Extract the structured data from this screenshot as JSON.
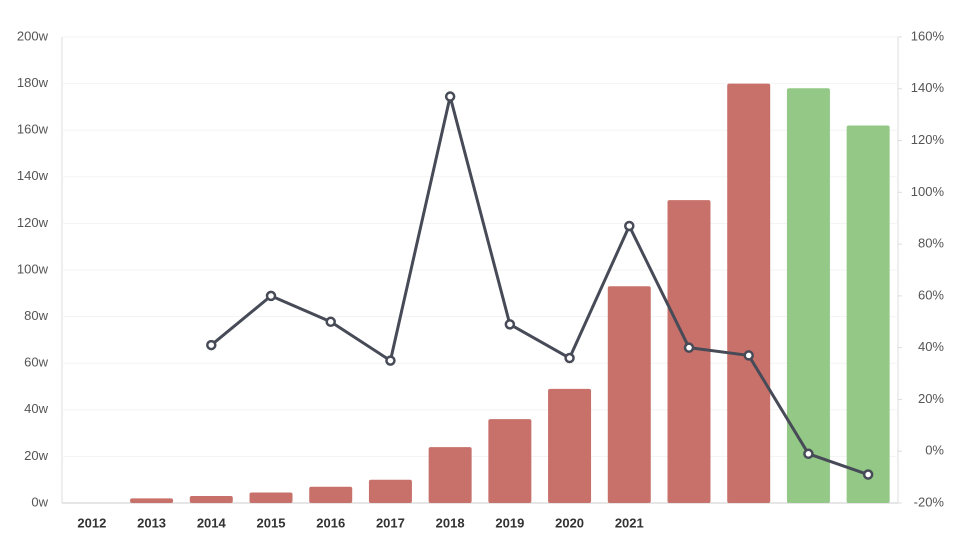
{
  "chart_data": {
    "type": "bar-line",
    "categories": [
      "2012",
      "2013",
      "2014",
      "2015",
      "2016",
      "2017",
      "2018",
      "2019",
      "2020",
      "2021",
      null,
      null,
      null,
      null
    ],
    "series": [
      {
        "type": "bar",
        "values": [
          0,
          2,
          3,
          4.5,
          7,
          10,
          24,
          36,
          49,
          93,
          130,
          180,
          178,
          162
        ],
        "colors": [
          "#c8706a",
          "#c8706a",
          "#c8706a",
          "#c8706a",
          "#c8706a",
          "#c8706a",
          "#c8706a",
          "#c8706a",
          "#c8706a",
          "#c8706a",
          "#c8706a",
          "#c8706a",
          "#93c886",
          "#93c886"
        ]
      },
      {
        "type": "line",
        "axis": "y2",
        "color": "#474b57",
        "values": [
          null,
          null,
          41,
          60,
          50,
          35,
          137,
          49,
          36,
          87,
          40,
          37,
          -1,
          -9
        ]
      }
    ],
    "ylim": [
      0,
      200
    ],
    "yticks": [
      {
        "value": 0,
        "label": "0w"
      },
      {
        "value": 20,
        "label": "20w"
      },
      {
        "value": 40,
        "label": "40w"
      },
      {
        "value": 60,
        "label": "60w"
      },
      {
        "value": 80,
        "label": "80w"
      },
      {
        "value": 100,
        "label": "100w"
      },
      {
        "value": 120,
        "label": "120w"
      },
      {
        "value": 140,
        "label": "140w"
      },
      {
        "value": 160,
        "label": "160w"
      },
      {
        "value": 180,
        "label": "180w"
      },
      {
        "value": 200,
        "label": "200w"
      }
    ],
    "y2lim": [
      -20,
      160
    ],
    "y2ticks": [
      {
        "value": -20,
        "label": "-20%"
      },
      {
        "value": 0,
        "label": "0%"
      },
      {
        "value": 20,
        "label": "20%"
      },
      {
        "value": 40,
        "label": "40%"
      },
      {
        "value": 60,
        "label": "60%"
      },
      {
        "value": 80,
        "label": "80%"
      },
      {
        "value": 100,
        "label": "100%"
      },
      {
        "value": 120,
        "label": "120%"
      },
      {
        "value": 140,
        "label": "140%"
      },
      {
        "value": 160,
        "label": "160%"
      }
    ],
    "grid": true
  }
}
